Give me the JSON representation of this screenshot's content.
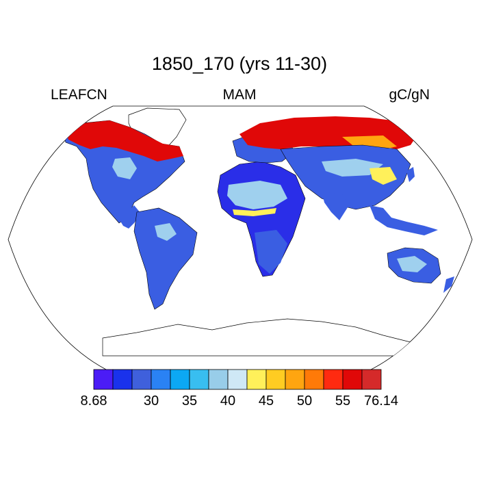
{
  "title": "1850_170 (yrs 11-30)",
  "labels": {
    "left": "LEAFCN",
    "center": "MAM",
    "right": "gC/gN"
  },
  "colorbar": {
    "colors": [
      "#4b1cf6",
      "#1a32ec",
      "#3f60dc",
      "#2a82f4",
      "#0ca8f4",
      "#38bef0",
      "#98cde9",
      "#cfe8f6",
      "#fff05a",
      "#ffcc22",
      "#ffa510",
      "#ff7a08",
      "#ff2a10",
      "#e00808",
      "#d52a2a"
    ],
    "tick_labels": [
      "8.68",
      "30",
      "35",
      "40",
      "45",
      "50",
      "55",
      "76.14"
    ],
    "tick_boundaries": [
      0,
      3,
      5,
      7,
      9,
      11,
      13,
      15
    ]
  },
  "map": {
    "projection": "Robinson",
    "colors": {
      "blue": "#3a5ee2",
      "light": "#9fd0ee",
      "deep": "#2a2ee8",
      "red": "#e00808",
      "orange": "#ffa510",
      "yellow": "#fff05a",
      "coast": "#000000"
    }
  }
}
